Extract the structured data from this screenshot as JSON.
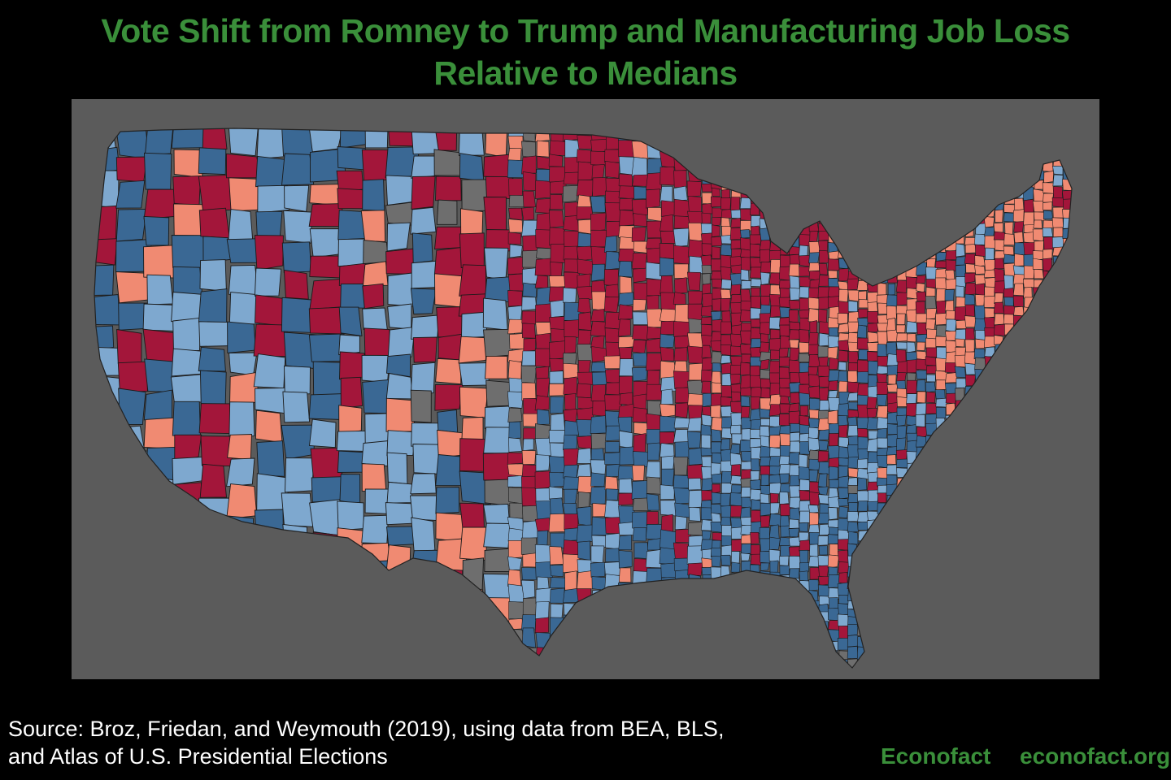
{
  "title": {
    "line1": "Vote Shift from Romney to Trump and Manufacturing Job Loss",
    "line2": "Relative to Medians"
  },
  "map": {
    "subject": "United States county choropleth",
    "classes": [
      {
        "key": "high_shift_high_loss",
        "color": "#a3163a"
      },
      {
        "key": "high_shift_low_loss",
        "color": "#f08a72"
      },
      {
        "key": "low_shift_high_loss",
        "color": "#3a6894"
      },
      {
        "key": "low_shift_low_loss",
        "color": "#7ea8cf"
      }
    ],
    "background_color": "#5b5b5b",
    "nodata_color": "#6e6e6e",
    "border_color": "#1a1a1a"
  },
  "source": {
    "line1": "Source: Broz, Friedan, and Weymouth (2019), using data from BEA, BLS,",
    "line2": "and Atlas of U.S. Presidential Elections"
  },
  "branding": {
    "name": "Econofact",
    "url": "econofact.org",
    "color": "#3a8f3a"
  }
}
